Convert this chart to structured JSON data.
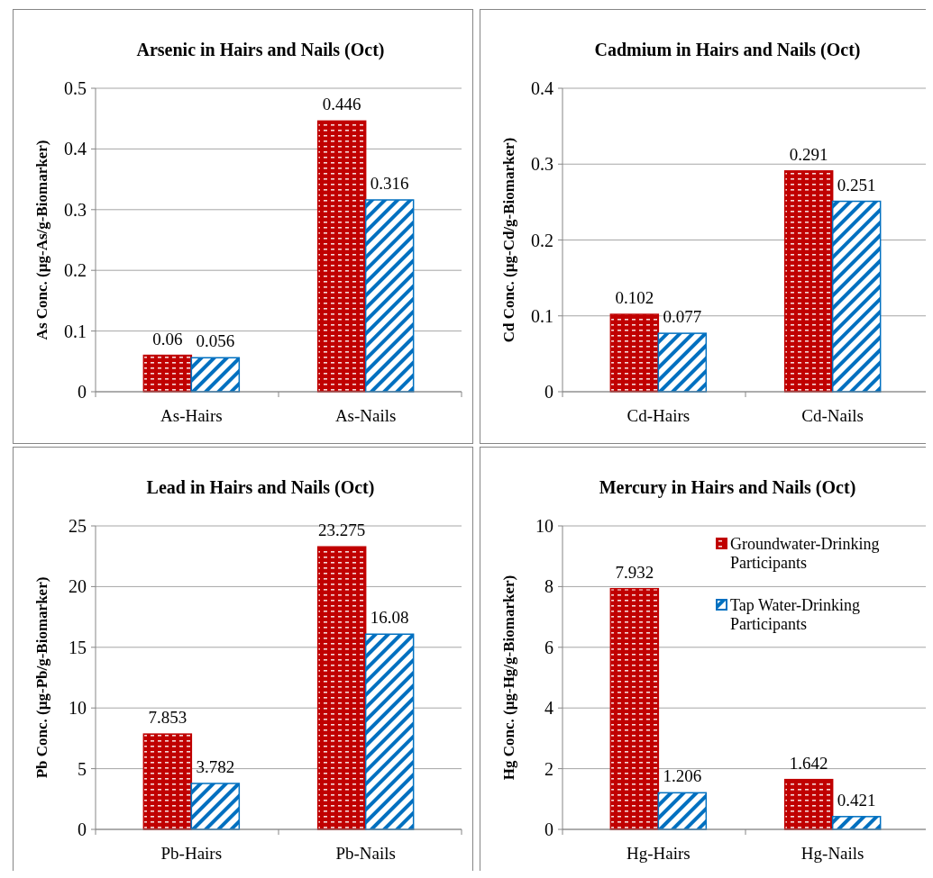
{
  "chart_data": [
    {
      "type": "bar",
      "title": "Arsenic in Hairs and Nails (Oct)",
      "ylabel": "As Conc. (µg-As/g-Biomarker)",
      "categories": [
        "As-Hairs",
        "As-Nails"
      ],
      "series": [
        {
          "color": "#c00000",
          "values": [
            0.06,
            0.446
          ]
        },
        {
          "color": "#0070c0",
          "values": [
            0.056,
            0.316
          ]
        }
      ],
      "ylim": [
        0,
        0.5
      ],
      "yticks": [
        0,
        0.1,
        0.2,
        0.3,
        0.4,
        0.5
      ],
      "grid": "y",
      "data_labels": true
    },
    {
      "type": "bar",
      "title": "Cadmium in Hairs and Nails (Oct)",
      "ylabel": "Cd Conc. (µg-Cd/g-Biomarker)",
      "categories": [
        "Cd-Hairs",
        "Cd-Nails"
      ],
      "series": [
        {
          "color": "#c00000",
          "values": [
            0.102,
            0.291
          ]
        },
        {
          "color": "#0070c0",
          "values": [
            0.077,
            0.251
          ]
        }
      ],
      "ylim": [
        0,
        0.4
      ],
      "yticks": [
        0,
        0.1,
        0.2,
        0.3,
        0.4
      ],
      "grid": "y",
      "data_labels": true
    },
    {
      "type": "bar",
      "title": "Lead in Hairs and Nails (Oct)",
      "ylabel": "Pb Conc. (µg-Pb/g-Biomarker)",
      "categories": [
        "Pb-Hairs",
        "Pb-Nails"
      ],
      "series": [
        {
          "color": "#c00000",
          "values": [
            7.853,
            23.275
          ]
        },
        {
          "color": "#0070c0",
          "values": [
            3.782,
            16.08
          ]
        }
      ],
      "ylim": [
        0,
        25
      ],
      "yticks": [
        0,
        5,
        10,
        15,
        20,
        25
      ],
      "grid": "y",
      "data_labels": true
    },
    {
      "type": "bar",
      "title": "Mercury in Hairs and Nails (Oct)",
      "ylabel": "Hg Conc. (µg-Hg/g-Biomarker)",
      "categories": [
        "Hg-Hairs",
        "Hg-Nails"
      ],
      "series": [
        {
          "name": "Groundwater-Drinking Participants",
          "color": "#c00000",
          "values": [
            7.932,
            1.642
          ]
        },
        {
          "name": "Tap Water-Drinking Participants",
          "color": "#0070c0",
          "values": [
            1.206,
            0.421
          ]
        }
      ],
      "ylim": [
        0,
        10
      ],
      "yticks": [
        0,
        2,
        4,
        6,
        8,
        10
      ],
      "grid": "y",
      "data_labels": true,
      "legend": "top right"
    }
  ]
}
